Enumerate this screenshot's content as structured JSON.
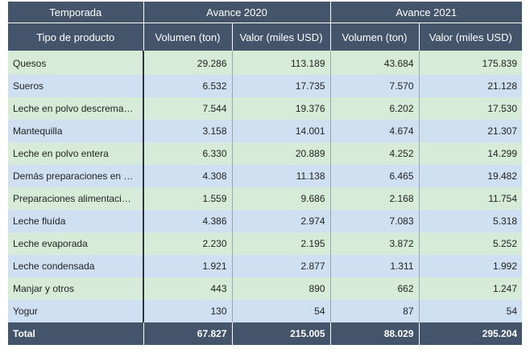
{
  "header": {
    "season_label": "Temporada",
    "group_2020": "Avance 2020",
    "group_2021": "Avance 2021",
    "product_type_label": "Tipo de producto",
    "volume_label_2020": "Volumen (ton)",
    "value_label_2020": "Valor (miles USD)",
    "volume_label_2021": "Volumen (ton)",
    "value_label_2021": "Valor (miles USD)"
  },
  "rows": [
    {
      "product": "Quesos",
      "vol_2020": "29.286",
      "val_2020": "113.189",
      "vol_2021": "43.684",
      "val_2021": "175.839"
    },
    {
      "product": "Sueros",
      "vol_2020": "6.532",
      "val_2020": "17.735",
      "vol_2021": "7.570",
      "val_2021": "21.128"
    },
    {
      "product": "Leche en polvo descrema…",
      "vol_2020": "7.544",
      "val_2020": "19.376",
      "vol_2021": "6.202",
      "val_2021": "17.530"
    },
    {
      "product": "Mantequilla",
      "vol_2020": "3.158",
      "val_2020": "14.001",
      "vol_2021": "4.674",
      "val_2021": "21.307"
    },
    {
      "product": "Leche en polvo entera",
      "vol_2020": "6.330",
      "val_2020": "20.889",
      "vol_2021": "4.252",
      "val_2021": "14.299"
    },
    {
      "product": "Demás preparaciones en …",
      "vol_2020": "4.308",
      "val_2020": "11.138",
      "vol_2021": "6.465",
      "val_2021": "19.482"
    },
    {
      "product": "Preparaciones alimentaci…",
      "vol_2020": "1.559",
      "val_2020": "9.686",
      "vol_2021": "2.168",
      "val_2021": "11.754"
    },
    {
      "product": "Leche fluída",
      "vol_2020": "4.386",
      "val_2020": "2.974",
      "vol_2021": "7.083",
      "val_2021": "5.318"
    },
    {
      "product": "Leche evaporada",
      "vol_2020": "2.230",
      "val_2020": "2.195",
      "vol_2021": "3.872",
      "val_2021": "5.252"
    },
    {
      "product": "Leche condensada",
      "vol_2020": "1.921",
      "val_2020": "2.877",
      "vol_2021": "1.311",
      "val_2021": "1.992"
    },
    {
      "product": "Manjar y otros",
      "vol_2020": "443",
      "val_2020": "890",
      "vol_2021": "662",
      "val_2021": "1.247"
    },
    {
      "product": "Yogur",
      "vol_2020": "130",
      "val_2020": "54",
      "vol_2021": "87",
      "val_2021": "54"
    }
  ],
  "total": {
    "label": "Total",
    "vol_2020": "67.827",
    "val_2020": "215.005",
    "vol_2021": "88.029",
    "val_2021": "295.204"
  },
  "colors": {
    "header_bg": "#44546a",
    "row_green": "#d6ecd8",
    "row_blue": "#cfe0f2"
  }
}
